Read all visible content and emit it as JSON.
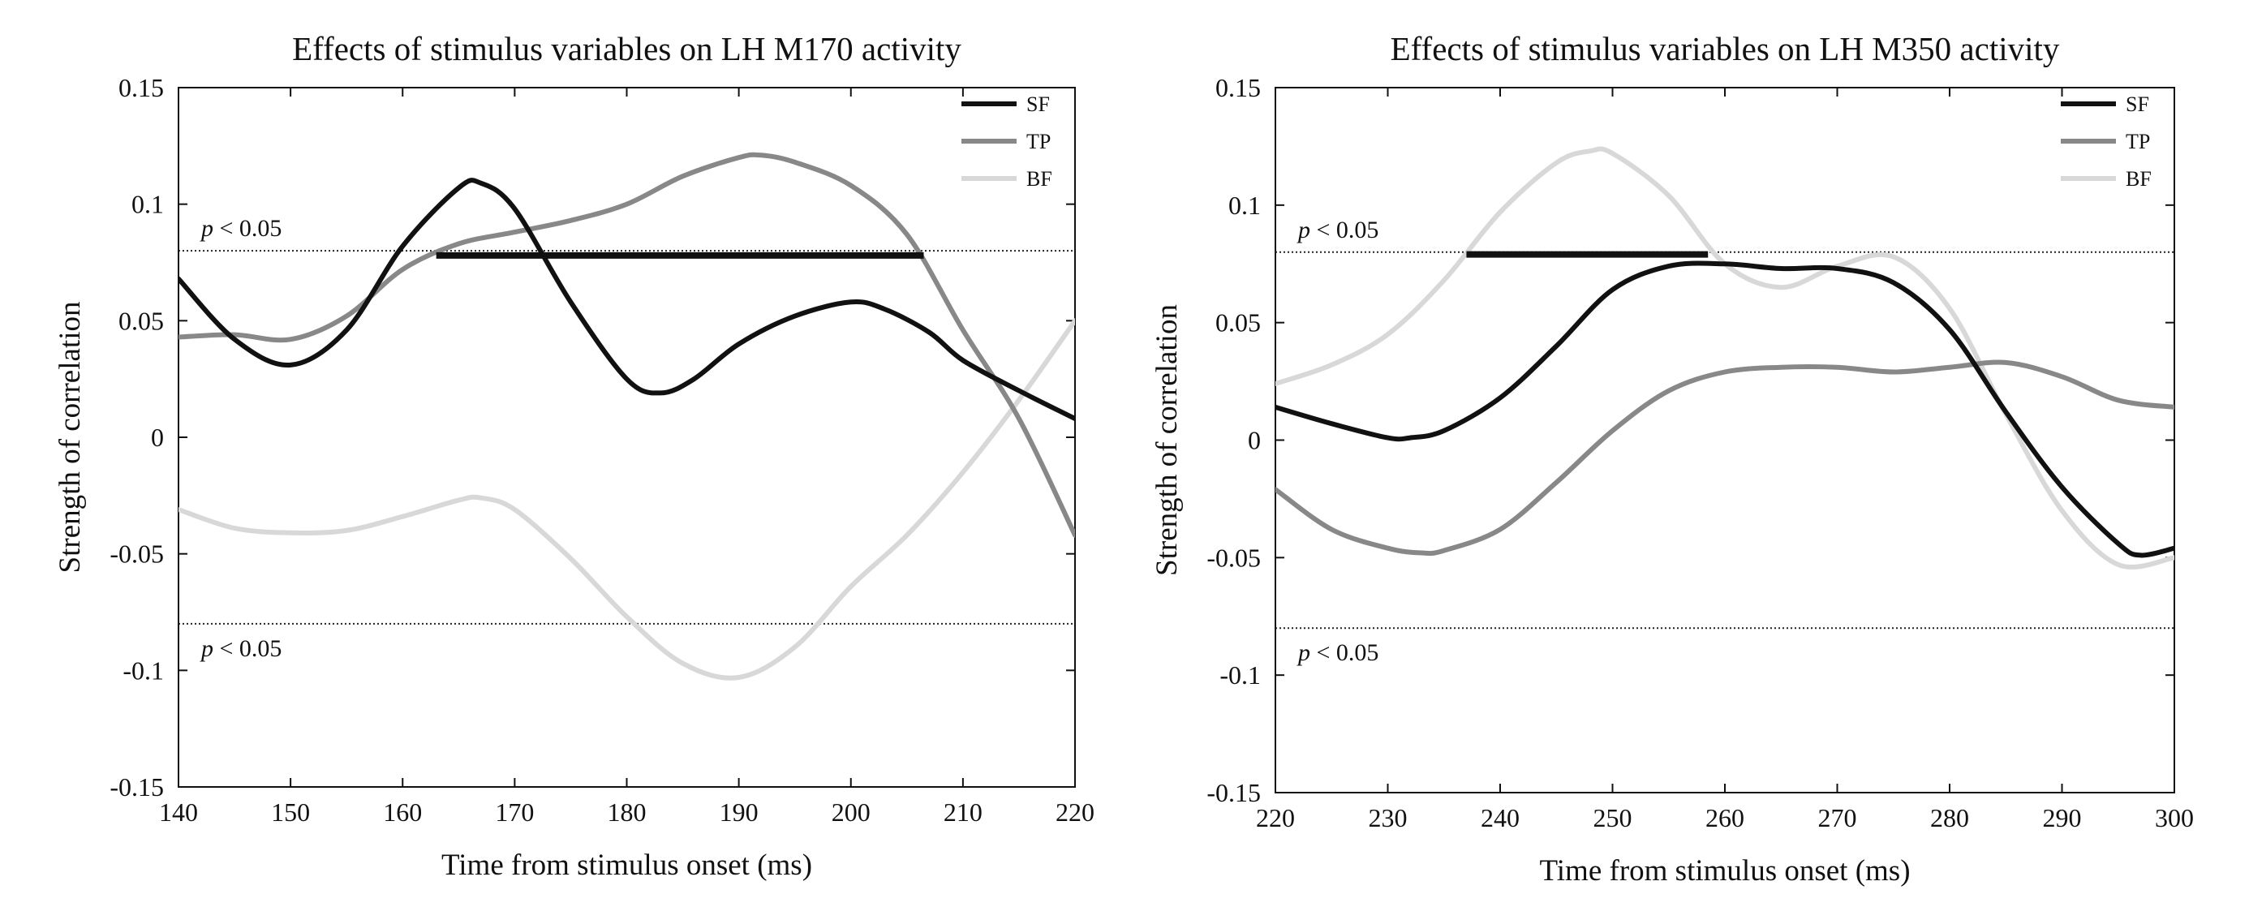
{
  "chart_data": [
    {
      "type": "line",
      "title": "Effects of stimulus variables on LH M170 activity",
      "xlabel": "Time from stimulus onset (ms)",
      "ylabel": "Strength of correlation",
      "xlim": [
        140,
        220
      ],
      "ylim": [
        -0.15,
        0.15
      ],
      "xticks": [
        140,
        150,
        160,
        170,
        180,
        190,
        200,
        210,
        220
      ],
      "yticks": [
        0.15,
        0.1,
        0.05,
        0,
        -0.05,
        -0.1,
        -0.15
      ],
      "xtick_labels": [
        "140",
        "150",
        "160",
        "170",
        "180",
        "190",
        "200",
        "210",
        "220"
      ],
      "ytick_labels": [
        "0.15",
        "0.1",
        "0.05",
        "0",
        "-0.05",
        "-0.1",
        "-0.15"
      ],
      "thresholds": [
        {
          "value": 0.08,
          "label_p": "p",
          "label_rest": " < 0.05"
        },
        {
          "value": -0.08,
          "label_p": "p",
          "label_rest": " < 0.05"
        }
      ],
      "significance_bar": {
        "x_start": 163,
        "x_end": 206.5,
        "y": 0.078,
        "color": "#111111"
      },
      "legend_position": "top-right",
      "series": [
        {
          "name": "SF",
          "color": "#111111",
          "x": [
            140,
            145,
            150,
            155,
            160,
            165,
            167,
            170,
            175,
            180,
            183,
            186,
            190,
            195,
            200,
            203,
            207,
            210,
            215,
            220
          ],
          "y": [
            0.068,
            0.042,
            0.031,
            0.046,
            0.082,
            0.107,
            0.109,
            0.098,
            0.058,
            0.025,
            0.019,
            0.025,
            0.04,
            0.052,
            0.058,
            0.055,
            0.045,
            0.033,
            0.02,
            0.008
          ]
        },
        {
          "name": "TP",
          "color": "#888888",
          "x": [
            140,
            145,
            150,
            155,
            160,
            165,
            170,
            175,
            180,
            185,
            190,
            192,
            195,
            200,
            205,
            210,
            215,
            220
          ],
          "y": [
            0.043,
            0.044,
            0.042,
            0.052,
            0.072,
            0.083,
            0.088,
            0.093,
            0.1,
            0.112,
            0.12,
            0.121,
            0.118,
            0.108,
            0.087,
            0.046,
            0.008,
            -0.042
          ]
        },
        {
          "name": "BF",
          "color": "#d8d8d8",
          "x": [
            140,
            145,
            150,
            155,
            160,
            165,
            167,
            170,
            175,
            180,
            185,
            190,
            195,
            200,
            205,
            210,
            215,
            220
          ],
          "y": [
            -0.031,
            -0.039,
            -0.041,
            -0.04,
            -0.034,
            -0.027,
            -0.026,
            -0.031,
            -0.052,
            -0.077,
            -0.097,
            -0.103,
            -0.09,
            -0.064,
            -0.042,
            -0.015,
            0.016,
            0.05
          ]
        }
      ]
    },
    {
      "type": "line",
      "title": "Effects of stimulus variables on LH M350 activity",
      "xlabel": "Time from stimulus onset (ms)",
      "ylabel": "Strength of correlation",
      "xlim": [
        220,
        300
      ],
      "ylim": [
        -0.15,
        0.15
      ],
      "xticks": [
        220,
        230,
        240,
        250,
        260,
        270,
        280,
        290,
        300
      ],
      "yticks": [
        0.15,
        0.1,
        0.05,
        0,
        -0.05,
        -0.1,
        -0.15
      ],
      "xtick_labels": [
        "220",
        "230",
        "240",
        "250",
        "260",
        "270",
        "280",
        "290",
        "300"
      ],
      "ytick_labels": [
        "0.15",
        "0.1",
        "0.05",
        "0",
        "-0.05",
        "-0.1",
        "-0.15"
      ],
      "thresholds": [
        {
          "value": 0.08,
          "label_p": "p",
          "label_rest": " < 0.05"
        },
        {
          "value": -0.08,
          "label_p": "p",
          "label_rest": " < 0.05"
        }
      ],
      "significance_bar": {
        "x_start": 237,
        "x_end": 258.5,
        "y": 0.079,
        "color": "#111111"
      },
      "legend_position": "top-right",
      "series": [
        {
          "name": "SF",
          "color": "#111111",
          "x": [
            220,
            225,
            230,
            232,
            235,
            240,
            245,
            250,
            255,
            260,
            265,
            270,
            275,
            280,
            285,
            290,
            295,
            297,
            300
          ],
          "y": [
            0.014,
            0.007,
            0.001,
            0.001,
            0.004,
            0.018,
            0.04,
            0.064,
            0.074,
            0.075,
            0.073,
            0.073,
            0.067,
            0.047,
            0.012,
            -0.02,
            -0.044,
            -0.049,
            -0.046
          ]
        },
        {
          "name": "TP",
          "color": "#888888",
          "x": [
            220,
            225,
            230,
            233,
            235,
            240,
            245,
            250,
            255,
            260,
            265,
            270,
            275,
            280,
            285,
            290,
            295,
            300
          ],
          "y": [
            -0.021,
            -0.038,
            -0.046,
            -0.048,
            -0.047,
            -0.038,
            -0.018,
            0.004,
            0.021,
            0.029,
            0.031,
            0.031,
            0.029,
            0.031,
            0.033,
            0.027,
            0.017,
            0.014
          ]
        },
        {
          "name": "BF",
          "color": "#d8d8d8",
          "x": [
            220,
            225,
            230,
            235,
            240,
            245,
            248,
            250,
            255,
            260,
            265,
            270,
            275,
            280,
            285,
            290,
            295,
            300
          ],
          "y": [
            0.024,
            0.032,
            0.045,
            0.068,
            0.097,
            0.118,
            0.123,
            0.122,
            0.104,
            0.075,
            0.065,
            0.074,
            0.078,
            0.056,
            0.011,
            -0.03,
            -0.053,
            -0.05
          ]
        }
      ]
    }
  ]
}
